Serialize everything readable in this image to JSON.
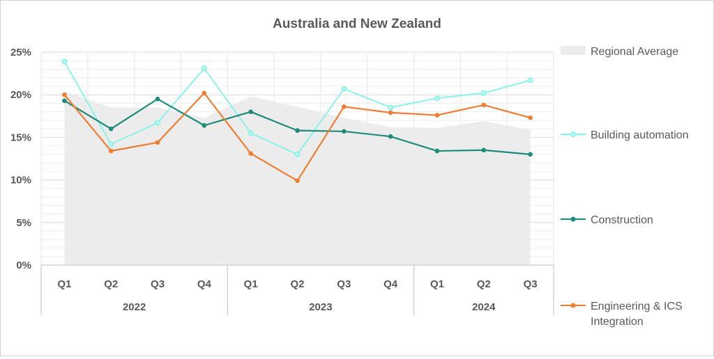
{
  "chart_data": {
    "type": "line",
    "title": "Australia and New Zealand",
    "categories": [
      "Q1",
      "Q2",
      "Q3",
      "Q4",
      "Q1",
      "Q2",
      "Q3",
      "Q4",
      "Q1",
      "Q2",
      "Q3"
    ],
    "groups": [
      {
        "label": "2022",
        "count": 4
      },
      {
        "label": "2023",
        "count": 4
      },
      {
        "label": "2024",
        "count": 3
      }
    ],
    "ylim": [
      0,
      25
    ],
    "yticks": [
      {
        "value": 0,
        "label": "0%"
      },
      {
        "value": 5,
        "label": "5%"
      },
      {
        "value": 10,
        "label": "10%"
      },
      {
        "value": 15,
        "label": "15%"
      },
      {
        "value": 20,
        "label": "20%"
      },
      {
        "value": 25,
        "label": "25%"
      }
    ],
    "grid": true,
    "legend_position": "right",
    "area_series": {
      "name": "Regional Average",
      "color": "#ececec",
      "values": [
        20.4,
        18.5,
        18.5,
        17.3,
        19.8,
        18.6,
        17.3,
        16.2,
        16.1,
        16.9,
        15.9
      ]
    },
    "series": [
      {
        "name": "Building automation",
        "color": "#7ff3e6",
        "values": [
          23.9,
          14.2,
          16.7,
          23.1,
          15.5,
          13.0,
          20.7,
          18.5,
          19.6,
          20.2,
          21.7
        ]
      },
      {
        "name": "Construction",
        "color": "#1e8a78",
        "values": [
          19.3,
          16.0,
          19.5,
          16.4,
          18.0,
          15.8,
          15.7,
          15.1,
          13.4,
          13.5,
          13.0
        ]
      },
      {
        "name": "Engineering & ICS Integration",
        "name_lines": [
          "Engineering & ICS",
          "Integration"
        ],
        "color": "#ed7d31",
        "values": [
          20.0,
          13.4,
          14.4,
          20.2,
          13.1,
          9.9,
          18.6,
          17.9,
          17.6,
          18.8,
          17.3
        ]
      }
    ]
  }
}
